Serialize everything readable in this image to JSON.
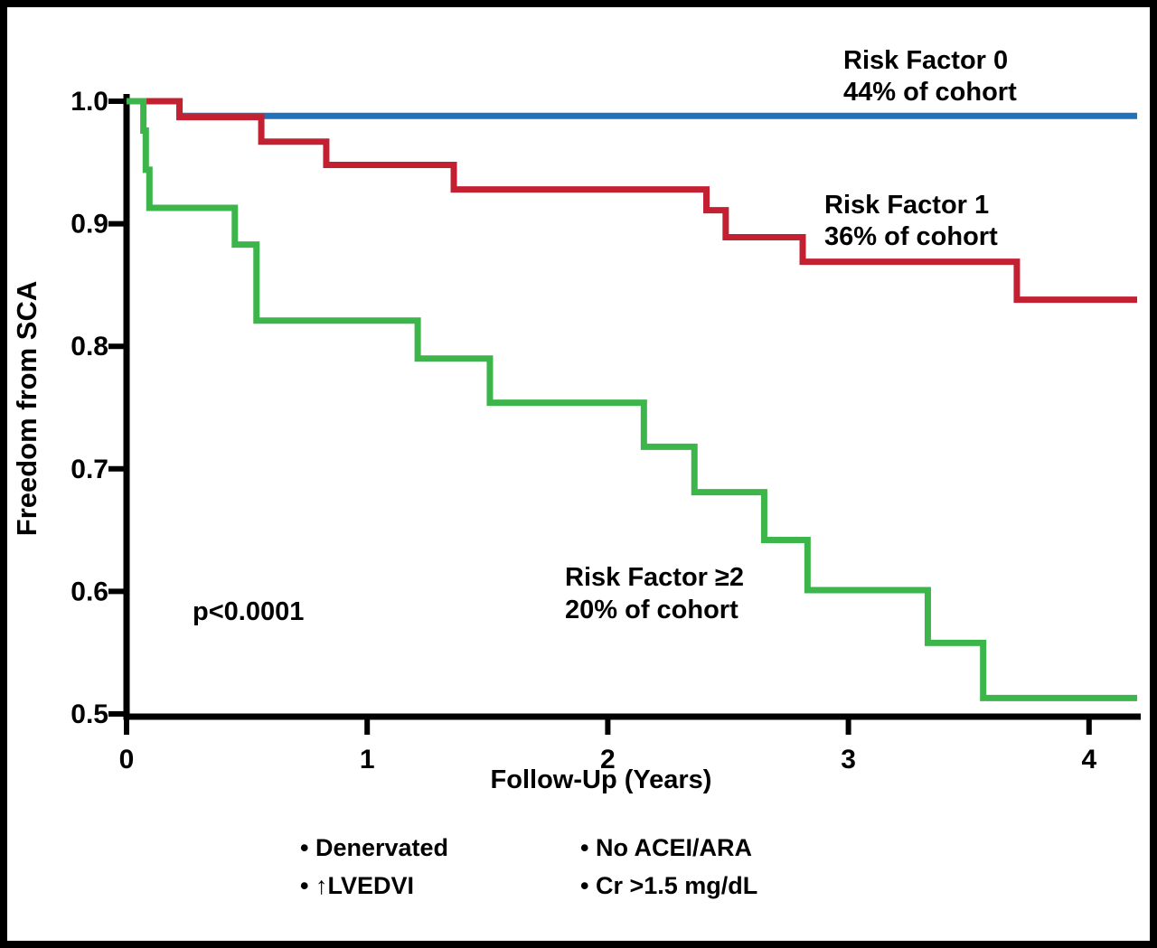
{
  "chart_data": {
    "type": "line",
    "subtype": "kaplan-meier-step",
    "title": "",
    "xlabel": "Follow-Up (Years)",
    "ylabel": "Freedom from SCA",
    "xlim": [
      0,
      4.2
    ],
    "ylim": [
      0.5,
      1.0
    ],
    "grid": false,
    "xticks": [
      0,
      1,
      2,
      3,
      4
    ],
    "xtick_labels": [
      "0",
      "1",
      "2",
      "3",
      "4"
    ],
    "yticks": [
      1.0,
      0.9,
      0.8,
      0.7,
      0.6,
      0.5
    ],
    "ytick_labels": [
      "1.0",
      "0.9",
      "0.8",
      "0.7",
      "0.6",
      "0.5"
    ],
    "annotation": "p<0.0001",
    "axis_color": "#000000",
    "series": [
      {
        "name": "Risk Factor 0",
        "cohort": "44% of cohort",
        "color": "#2172b8",
        "steps": [
          [
            0,
            1.0
          ],
          [
            0.22,
            0.988
          ],
          [
            4.2,
            0.988
          ]
        ]
      },
      {
        "name": "Risk Factor 1",
        "cohort": "36% of cohort",
        "color": "#c32031",
        "steps": [
          [
            0,
            1.0
          ],
          [
            0.22,
            0.987
          ],
          [
            0.56,
            0.967
          ],
          [
            0.83,
            0.948
          ],
          [
            1.36,
            0.928
          ],
          [
            2.41,
            0.911
          ],
          [
            2.49,
            0.889
          ],
          [
            2.81,
            0.869
          ],
          [
            3.7,
            0.838
          ],
          [
            4.2,
            0.838
          ]
        ]
      },
      {
        "name": "Risk Factor ≥2",
        "cohort": "20% of cohort",
        "color": "#3cb54a",
        "steps": [
          [
            0,
            1.0
          ],
          [
            0.07,
            0.976
          ],
          [
            0.08,
            0.944
          ],
          [
            0.095,
            0.913
          ],
          [
            0.45,
            0.883
          ],
          [
            0.54,
            0.821
          ],
          [
            1.21,
            0.79
          ],
          [
            1.51,
            0.754
          ],
          [
            2.15,
            0.718
          ],
          [
            2.36,
            0.681
          ],
          [
            2.65,
            0.642
          ],
          [
            2.83,
            0.601
          ],
          [
            3.33,
            0.558
          ],
          [
            3.56,
            0.513
          ],
          [
            4.2,
            0.513
          ]
        ]
      }
    ]
  },
  "footnotes": {
    "left": [
      "• Denervated",
      "• ↑LVEDVI"
    ],
    "right": [
      "• No ACEI/ARA",
      "• Cr >1.5 mg/dL"
    ]
  }
}
